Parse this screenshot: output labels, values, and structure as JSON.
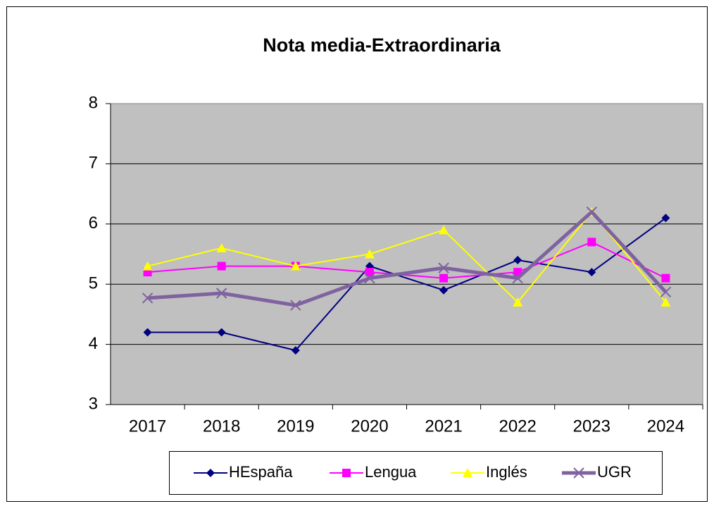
{
  "chart_data": {
    "type": "line",
    "title": "Nota media-Extraordinaria",
    "categories": [
      "2017",
      "2018",
      "2019",
      "2020",
      "2021",
      "2022",
      "2023",
      "2024"
    ],
    "series": [
      {
        "name": "HEspaña",
        "color": "#000080",
        "marker": "diamond",
        "values": [
          4.2,
          4.2,
          3.9,
          5.3,
          4.9,
          5.4,
          5.2,
          6.1
        ]
      },
      {
        "name": "Lengua",
        "color": "#ff00ff",
        "marker": "square",
        "values": [
          5.2,
          5.3,
          5.3,
          5.2,
          5.1,
          5.2,
          5.7,
          5.1
        ]
      },
      {
        "name": "Inglés",
        "color": "#ffff00",
        "marker": "triangle",
        "values": [
          5.3,
          5.6,
          5.3,
          5.5,
          5.9,
          4.7,
          6.2,
          4.7
        ]
      },
      {
        "name": "UGR",
        "color": "#7f62a0",
        "marker": "x",
        "values": [
          4.77,
          4.85,
          4.65,
          5.1,
          5.27,
          5.1,
          6.2,
          4.87
        ]
      }
    ],
    "ylim": [
      3,
      8
    ],
    "yticks": [
      3,
      4,
      5,
      6,
      7,
      8
    ],
    "grid": true,
    "legend": "bottom"
  }
}
